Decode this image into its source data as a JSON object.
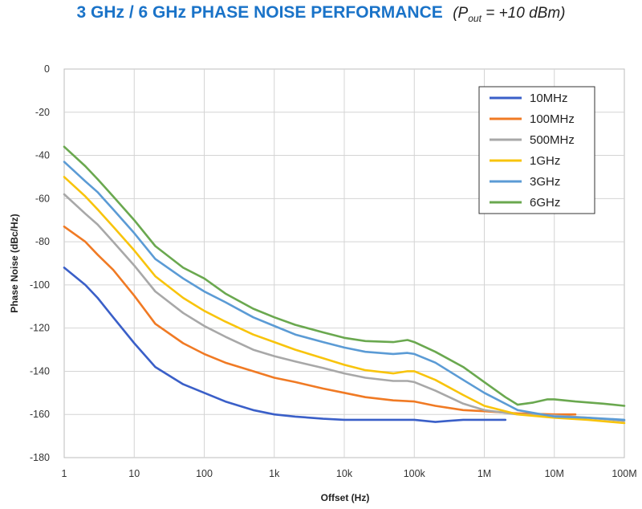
{
  "header": {
    "title_main": "3 GHz / 6 GHz PHASE NOISE PERFORMANCE",
    "title_p": "P",
    "title_sub": "out",
    "title_rest": " = +10 dBm)",
    "title_open": "("
  },
  "chart_data": {
    "type": "line",
    "title": "3 GHz / 6 GHz PHASE NOISE PERFORMANCE (Pout = +10 dBm)",
    "xlabel": "Offset (Hz)",
    "ylabel": "Phase Noise (dBc/Hz)",
    "xscale": "log",
    "xlim": [
      1,
      100000000
    ],
    "ylim": [
      -180,
      0
    ],
    "x_ticks": [
      1,
      10,
      100,
      1000,
      10000,
      100000,
      1000000,
      10000000,
      100000000
    ],
    "x_tick_labels": [
      "1",
      "10",
      "100",
      "1k",
      "10k",
      "100k",
      "1M",
      "10M",
      "100M"
    ],
    "y_ticks": [
      0,
      -20,
      -40,
      -60,
      -80,
      -100,
      -120,
      -140,
      -160,
      -180
    ],
    "y_tick_labels": [
      "0",
      "-20",
      "-40",
      "-60",
      "-80",
      "-100",
      "-120",
      "-140",
      "-160",
      "-180"
    ],
    "grid": true,
    "legend_position": "top-right",
    "series": [
      {
        "name": "10MHz",
        "color": "#3a5fc8",
        "x": [
          1,
          2,
          3,
          5,
          10,
          20,
          50,
          100,
          200,
          500,
          1000,
          2000,
          5000,
          10000,
          20000,
          50000,
          100000,
          200000,
          300000,
          500000,
          1000000,
          2000000
        ],
        "y": [
          -92,
          -100,
          -106,
          -115,
          -127,
          -138,
          -146,
          -150,
          -154,
          -158,
          -160,
          -161,
          -162,
          -162.5,
          -162.5,
          -162.5,
          -162.5,
          -163.5,
          -163,
          -162.5,
          -162.5,
          -162.5
        ]
      },
      {
        "name": "100MHz",
        "color": "#f07a24",
        "x": [
          1,
          2,
          3,
          5,
          10,
          20,
          50,
          100,
          200,
          500,
          1000,
          2000,
          5000,
          10000,
          20000,
          50000,
          100000,
          200000,
          500000,
          1000000,
          3000000,
          10000000,
          20000000
        ],
        "y": [
          -73,
          -80,
          -86,
          -93,
          -105,
          -118,
          -127,
          -132,
          -136,
          -140,
          -143,
          -145,
          -148,
          -150,
          -152,
          -153.5,
          -154,
          -156,
          -158,
          -158.5,
          -159.5,
          -160,
          -160
        ]
      },
      {
        "name": "500MHz",
        "color": "#a8a8a8",
        "x": [
          1,
          2,
          3,
          5,
          10,
          20,
          50,
          100,
          200,
          500,
          1000,
          2000,
          5000,
          10000,
          20000,
          50000,
          80000,
          100000,
          200000,
          500000,
          1000000,
          3000000,
          10000000,
          30000000,
          100000000
        ],
        "y": [
          -58,
          -67,
          -72,
          -80,
          -91,
          -103,
          -113,
          -119,
          -124,
          -130,
          -133,
          -135.5,
          -138.5,
          -141,
          -143,
          -144.5,
          -144.5,
          -145,
          -149,
          -155,
          -158,
          -160,
          -160.5,
          -161.5,
          -163
        ]
      },
      {
        "name": "1GHz",
        "color": "#f8c40c",
        "x": [
          1,
          2,
          3,
          5,
          10,
          20,
          50,
          100,
          200,
          500,
          1000,
          2000,
          5000,
          10000,
          20000,
          50000,
          80000,
          100000,
          200000,
          500000,
          1000000,
          3000000,
          10000000,
          30000000,
          100000000
        ],
        "y": [
          -50,
          -59,
          -65,
          -73,
          -84,
          -96,
          -106,
          -112,
          -117,
          -123,
          -126.5,
          -130,
          -134,
          -137,
          -139.5,
          -141,
          -140,
          -140,
          -144,
          -151,
          -156,
          -160,
          -161.5,
          -162.5,
          -164
        ]
      },
      {
        "name": "3GHz",
        "color": "#5b9bd5",
        "x": [
          1,
          2,
          3,
          5,
          10,
          20,
          50,
          100,
          200,
          500,
          1000,
          2000,
          5000,
          10000,
          20000,
          50000,
          80000,
          100000,
          200000,
          500000,
          1000000,
          3000000,
          10000000,
          30000000,
          100000000
        ],
        "y": [
          -43,
          -52,
          -57,
          -65,
          -76,
          -88,
          -97,
          -103,
          -108,
          -115,
          -119,
          -123,
          -126.5,
          -129,
          -131,
          -132,
          -131.5,
          -132,
          -136,
          -144,
          -150,
          -158,
          -161,
          -161.5,
          -162.5
        ]
      },
      {
        "name": "6GHz",
        "color": "#6aa84f",
        "x": [
          1,
          2,
          3,
          5,
          10,
          20,
          50,
          100,
          200,
          500,
          1000,
          2000,
          5000,
          10000,
          20000,
          50000,
          80000,
          100000,
          200000,
          500000,
          1000000,
          2000000,
          3000000,
          5000000,
          8000000,
          10000000,
          20000000,
          50000000,
          100000000
        ],
        "y": [
          -36,
          -45,
          -51,
          -59,
          -70,
          -82,
          -92,
          -97,
          -104,
          -111,
          -115,
          -118.5,
          -122,
          -124.5,
          -126,
          -126.5,
          -125.5,
          -126.5,
          -131,
          -138,
          -145,
          -152,
          -155.5,
          -154.5,
          -153,
          -153,
          -154,
          -155,
          -156
        ]
      }
    ]
  }
}
